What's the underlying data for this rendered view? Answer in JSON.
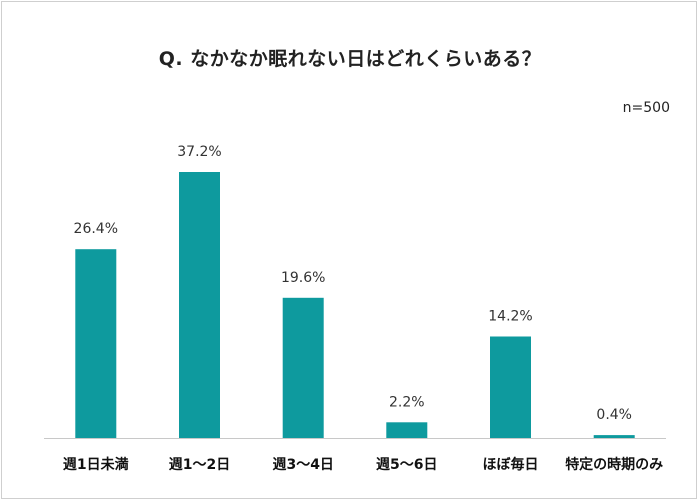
{
  "chart_data": {
    "type": "bar",
    "title": "Q. なかなか眠れない日はどれくらいある？",
    "note": "n=500",
    "categories": [
      "週1日未満",
      "週1～2日",
      "週3～4日",
      "週5～6日",
      "ほぼ毎日",
      "特定の時期のみ"
    ],
    "values": [
      26.4,
      37.2,
      19.6,
      2.2,
      14.2,
      0.4
    ],
    "value_labels": [
      "26.4%",
      "37.2%",
      "19.6%",
      "2.2%",
      "14.2%",
      "0.4%"
    ],
    "unit": "%",
    "ylim": [
      0,
      40
    ],
    "xlabel": "",
    "ylabel": "",
    "grid": false,
    "legend": "none",
    "bar_color": "#0e9a9e",
    "axis_color": "#c8c8c8"
  }
}
